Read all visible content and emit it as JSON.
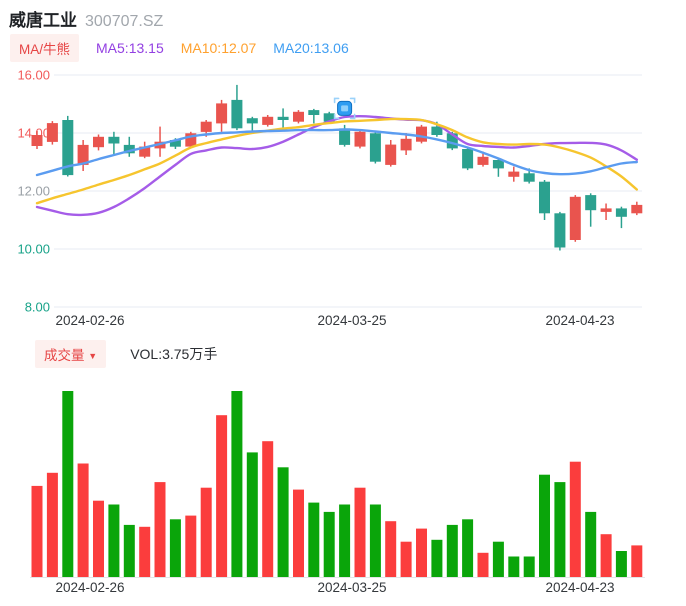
{
  "header": {
    "title": "威唐工业",
    "code": "300707.SZ"
  },
  "legend": {
    "badge": "MA/牛熊",
    "ma5": {
      "label": "MA5:13.15",
      "color": "#9340e2"
    },
    "ma10": {
      "label": "MA10:12.07",
      "color": "#ffa12e"
    },
    "ma20": {
      "label": "MA20:13.06",
      "color": "#3f9ef2"
    }
  },
  "volume_header": {
    "badge": "成交量",
    "arrow": "▼",
    "vol_label": "VOL:3.75万手"
  },
  "colors": {
    "grid": "#e7ebf3",
    "baseline": "#e3e5e8",
    "date_text": "#34383c",
    "marker_fill": "#2e9df2",
    "marker_border": "#0f6fc0",
    "marker_inner": "#8fd0fb",
    "marker_bracket": "#9bd2fa"
  },
  "chart_data": [
    {
      "type": "candlestick",
      "name": "price-panel",
      "ylim": [
        8,
        16.6
      ],
      "grid": true,
      "up_color": "#e9544e",
      "down_color": "#2ba18f",
      "y_ticks": [
        {
          "price": 16,
          "label": "16.00",
          "color": "#f25a5a"
        },
        {
          "price": 14,
          "label": "14.00",
          "color": "#f25a5a"
        },
        {
          "price": 12,
          "label": "12.00",
          "color": "#9aa0a6"
        },
        {
          "price": 10,
          "label": "10.00",
          "color": "#18a389"
        },
        {
          "price": 8,
          "label": "8.00",
          "color": "#18a389"
        }
      ],
      "x_ticks": [
        {
          "label": "2024-02-26",
          "x": 90
        },
        {
          "label": "2024-03-25",
          "x": 352
        },
        {
          "label": "2024-04-23",
          "x": 580
        }
      ],
      "candles": [
        [
          13.55,
          13.93,
          14.07,
          13.45
        ],
        [
          13.69,
          14.34,
          14.41,
          13.6
        ],
        [
          14.45,
          12.55,
          14.59,
          12.5
        ],
        [
          12.9,
          13.59,
          13.76,
          12.69
        ],
        [
          13.51,
          13.87,
          13.95,
          13.4
        ],
        [
          13.87,
          13.64,
          14.04,
          13.24
        ],
        [
          13.59,
          13.3,
          13.87,
          13.18
        ],
        [
          13.18,
          13.53,
          13.7,
          13.13
        ],
        [
          13.47,
          13.7,
          14.22,
          13.18
        ],
        [
          13.76,
          13.53,
          13.82,
          13.45
        ],
        [
          13.53,
          13.99,
          14.04,
          13.47
        ],
        [
          14.04,
          14.39,
          14.45,
          13.87
        ],
        [
          14.33,
          15.02,
          15.14,
          14.04
        ],
        [
          15.14,
          14.16,
          15.66,
          14.1
        ],
        [
          14.51,
          14.33,
          14.56,
          14.04
        ],
        [
          14.28,
          14.56,
          14.62,
          14.22
        ],
        [
          14.56,
          14.45,
          14.85,
          14.16
        ],
        [
          14.39,
          14.73,
          14.79,
          14.33
        ],
        [
          14.79,
          14.62,
          14.83,
          14.33
        ],
        [
          14.68,
          14.39,
          14.73,
          14.33
        ],
        [
          14.16,
          13.59,
          14.28,
          13.53
        ],
        [
          13.53,
          14.04,
          14.1,
          13.47
        ],
        [
          13.99,
          13.01,
          14.04,
          12.95
        ],
        [
          12.9,
          13.6,
          13.76,
          12.84
        ],
        [
          13.4,
          13.8,
          14.0,
          13.24
        ],
        [
          13.7,
          14.22,
          14.28,
          13.64
        ],
        [
          14.22,
          13.93,
          14.39,
          13.87
        ],
        [
          13.99,
          13.47,
          14.04,
          13.41
        ],
        [
          13.45,
          12.78,
          13.53,
          12.72
        ],
        [
          12.9,
          13.18,
          13.36,
          12.84
        ],
        [
          13.07,
          12.78,
          13.12,
          12.49
        ],
        [
          12.49,
          12.67,
          12.84,
          12.32
        ],
        [
          12.61,
          12.32,
          12.78,
          12.26
        ],
        [
          12.32,
          11.23,
          12.38,
          11.0
        ],
        [
          11.23,
          10.05,
          11.28,
          9.95
        ],
        [
          10.31,
          11.8,
          11.86,
          10.25
        ],
        [
          11.86,
          11.34,
          11.92,
          10.77
        ],
        [
          11.28,
          11.4,
          11.57,
          11.0
        ],
        [
          11.4,
          11.11,
          11.46,
          10.72
        ],
        [
          11.23,
          11.52,
          11.63,
          11.17
        ]
      ],
      "series": [
        {
          "name": "MA5/牛熊",
          "color": "#a55ce8",
          "values": [
            11.45,
            11.32,
            11.2,
            11.18,
            11.25,
            11.45,
            11.75,
            12.1,
            12.5,
            12.9,
            13.28,
            13.4,
            13.5,
            13.48,
            13.45,
            13.52,
            13.7,
            13.95,
            14.2,
            14.4,
            14.55,
            14.58,
            14.55,
            14.5,
            14.46,
            14.44,
            14.3,
            13.95,
            13.62,
            13.55,
            13.52,
            13.5,
            13.55,
            13.62,
            13.65,
            13.66,
            13.66,
            13.6,
            13.4,
            13.08
          ]
        },
        {
          "name": "MA10",
          "color": "#f6c52e",
          "values": [
            11.58,
            11.75,
            11.9,
            12.05,
            12.22,
            12.38,
            12.55,
            12.75,
            12.95,
            13.22,
            13.5,
            13.65,
            13.78,
            13.9,
            14.0,
            14.08,
            14.15,
            14.2,
            14.28,
            14.34,
            14.4,
            14.42,
            14.45,
            14.48,
            14.48,
            14.45,
            14.3,
            14.1,
            13.85,
            13.68,
            13.62,
            13.6,
            13.62,
            13.6,
            13.5,
            13.35,
            13.15,
            12.85,
            12.5,
            12.05
          ]
        },
        {
          "name": "MA20",
          "color": "#5b9cf0",
          "values": [
            12.55,
            12.7,
            12.85,
            12.95,
            13.1,
            13.24,
            13.38,
            13.5,
            13.62,
            13.75,
            13.88,
            13.95,
            14.0,
            14.02,
            14.05,
            14.07,
            14.08,
            14.1,
            14.1,
            14.1,
            14.12,
            14.1,
            14.05,
            14.0,
            13.95,
            13.88,
            13.78,
            13.65,
            13.5,
            13.32,
            13.12,
            12.9,
            12.72,
            12.62,
            12.58,
            12.6,
            12.68,
            12.82,
            12.95,
            13.0
          ]
        }
      ],
      "marker": {
        "name": "event-marker",
        "index": 20,
        "price": 14.85
      }
    },
    {
      "type": "bar",
      "name": "volume-panel",
      "unit": "percent-of-max-volume",
      "up_color": "#fb3d3d",
      "down_color": "#0aa50a",
      "x_ticks": [
        {
          "label": "2024-02-26",
          "x": 90
        },
        {
          "label": "2024-03-25",
          "x": 352
        },
        {
          "label": "2024-04-23",
          "x": 580
        }
      ],
      "bars": [
        {
          "v": 49,
          "dir": "up"
        },
        {
          "v": 56,
          "dir": "up"
        },
        {
          "v": 100,
          "dir": "down"
        },
        {
          "v": 61,
          "dir": "up"
        },
        {
          "v": 41,
          "dir": "up"
        },
        {
          "v": 39,
          "dir": "down"
        },
        {
          "v": 28,
          "dir": "down"
        },
        {
          "v": 27,
          "dir": "up"
        },
        {
          "v": 51,
          "dir": "up"
        },
        {
          "v": 31,
          "dir": "down"
        },
        {
          "v": 33,
          "dir": "up"
        },
        {
          "v": 48,
          "dir": "up"
        },
        {
          "v": 87,
          "dir": "up"
        },
        {
          "v": 100,
          "dir": "down"
        },
        {
          "v": 67,
          "dir": "down"
        },
        {
          "v": 73,
          "dir": "up"
        },
        {
          "v": 59,
          "dir": "down"
        },
        {
          "v": 47,
          "dir": "up"
        },
        {
          "v": 40,
          "dir": "down"
        },
        {
          "v": 35,
          "dir": "down"
        },
        {
          "v": 39,
          "dir": "down"
        },
        {
          "v": 48,
          "dir": "up"
        },
        {
          "v": 39,
          "dir": "down"
        },
        {
          "v": 30,
          "dir": "up"
        },
        {
          "v": 19,
          "dir": "up"
        },
        {
          "v": 26,
          "dir": "up"
        },
        {
          "v": 20,
          "dir": "down"
        },
        {
          "v": 28,
          "dir": "down"
        },
        {
          "v": 31,
          "dir": "down"
        },
        {
          "v": 13,
          "dir": "up"
        },
        {
          "v": 19,
          "dir": "down"
        },
        {
          "v": 11,
          "dir": "down"
        },
        {
          "v": 11,
          "dir": "down"
        },
        {
          "v": 55,
          "dir": "down"
        },
        {
          "v": 51,
          "dir": "down"
        },
        {
          "v": 62,
          "dir": "up"
        },
        {
          "v": 35,
          "dir": "down"
        },
        {
          "v": 23,
          "dir": "up"
        },
        {
          "v": 14,
          "dir": "down"
        },
        {
          "v": 17,
          "dir": "up"
        }
      ]
    }
  ]
}
